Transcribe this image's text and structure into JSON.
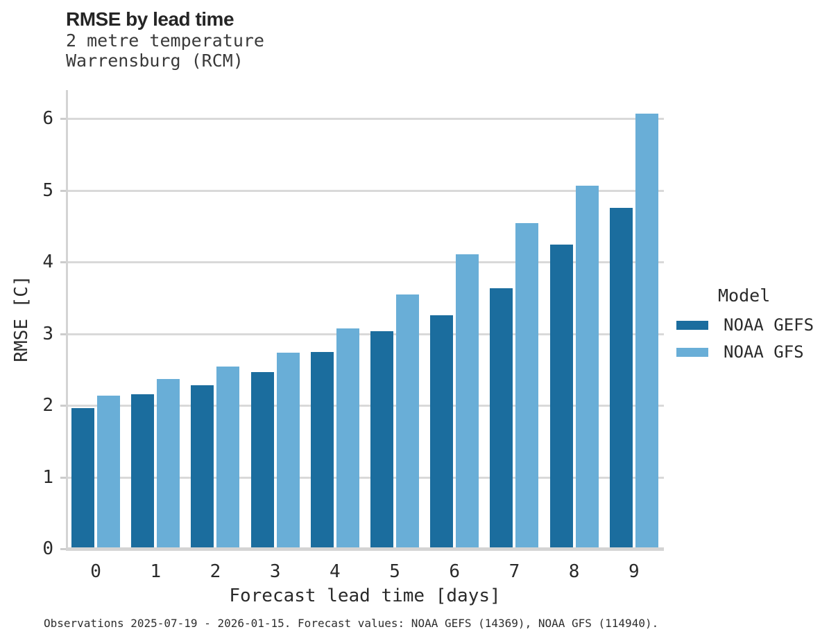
{
  "header": {
    "title": "RMSE by lead time",
    "subtitle_line1": "2 metre temperature",
    "subtitle_line2": "Warrensburg (RCM)"
  },
  "chart_data": {
    "type": "bar",
    "title": "RMSE by lead time",
    "subtitle": [
      "2 metre temperature",
      "Warrensburg (RCM)"
    ],
    "categories": [
      "0",
      "1",
      "2",
      "3",
      "4",
      "5",
      "6",
      "7",
      "8",
      "9"
    ],
    "series": [
      {
        "name": "NOAA GEFS",
        "color": "#1b6d9e",
        "values": [
          1.96,
          2.16,
          2.28,
          2.47,
          2.75,
          3.04,
          3.26,
          3.64,
          4.24,
          4.76
        ]
      },
      {
        "name": "NOAA GFS",
        "color": "#69aed7",
        "values": [
          2.14,
          2.37,
          2.54,
          2.74,
          3.07,
          3.55,
          4.11,
          4.54,
          5.07,
          6.07
        ]
      }
    ],
    "xlabel": "Forecast lead time [days]",
    "ylabel": "RMSE [C]",
    "ylim": [
      0,
      6.4
    ],
    "yticks": [
      0,
      1,
      2,
      3,
      4,
      5,
      6
    ],
    "grid": "horizontal",
    "legend_title": "Model",
    "legend_position": "right"
  },
  "legend": {
    "title": "Model",
    "entries": [
      {
        "label": "NOAA GEFS",
        "color": "#1b6d9e"
      },
      {
        "label": "NOAA GFS",
        "color": "#69aed7"
      }
    ]
  },
  "caption": "Observations 2025-07-19 - 2026-01-15. Forecast values: NOAA GEFS (14369), NOAA GFS (114940).",
  "colors": {
    "grid": "#d9d9d9",
    "spine": "#d4d4d4",
    "tick": "#cccccc",
    "text": "#2a2a2a"
  }
}
